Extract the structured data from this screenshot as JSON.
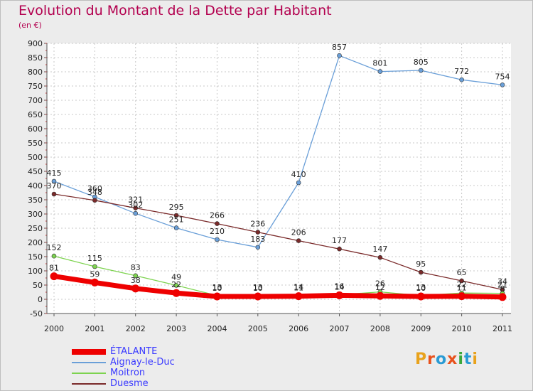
{
  "title": "Evolution du Montant de la Dette par Habitant",
  "subtitle": "(en €)",
  "logo": {
    "text": "Proxiti",
    "colors": [
      "#e8a21c",
      "#e8511c",
      "#2a9bd4",
      "#e8511c",
      "#3aa83a",
      "#2a9bd4",
      "#e8a21c"
    ]
  },
  "chart_data": {
    "type": "line",
    "x": [
      2000,
      2001,
      2002,
      2003,
      2004,
      2005,
      2006,
      2007,
      2008,
      2009,
      2010,
      2011
    ],
    "ylim": [
      -50,
      900
    ],
    "yticks": [
      -50,
      0,
      50,
      100,
      150,
      200,
      250,
      300,
      350,
      400,
      450,
      500,
      550,
      600,
      650,
      700,
      750,
      800,
      850,
      900
    ],
    "grid": true,
    "legend": "bottom-left",
    "series": [
      {
        "name": "ÉTALANTE",
        "color": "#ee0000",
        "values": [
          81,
          59,
          38,
          22,
          10,
          10,
          11,
          14,
          12,
          10,
          11,
          8
        ],
        "labels": [
          "81",
          "59",
          "38",
          "22",
          "10",
          "10",
          "11",
          "14",
          "12",
          "10",
          "11",
          "8"
        ]
      },
      {
        "name": "Aignay-le-Duc",
        "color": "#6a9fd8",
        "values": [
          415,
          360,
          302,
          251,
          210,
          183,
          410,
          857,
          801,
          805,
          772,
          754
        ],
        "labels": [
          "415",
          "360",
          "302",
          "251",
          "210",
          "183",
          "410",
          "857",
          "801",
          "805",
          "772",
          "754"
        ]
      },
      {
        "name": "Moitron",
        "color": "#7dd34f",
        "values": [
          152,
          115,
          83,
          49,
          13,
          13,
          14,
          16,
          26,
          13,
          22,
          21
        ],
        "labels": [
          "152",
          "115",
          "83",
          "49",
          "13",
          "13",
          "14",
          "16",
          "26",
          "13",
          "22",
          "21"
        ]
      },
      {
        "name": "Duesme",
        "color": "#7a2a2a",
        "values": [
          370,
          348,
          321,
          295,
          266,
          236,
          206,
          177,
          147,
          95,
          65,
          34
        ],
        "labels": [
          "370",
          "348",
          "321",
          "295",
          "266",
          "236",
          "206",
          "177",
          "147",
          "95",
          "65",
          "34"
        ]
      }
    ]
  }
}
